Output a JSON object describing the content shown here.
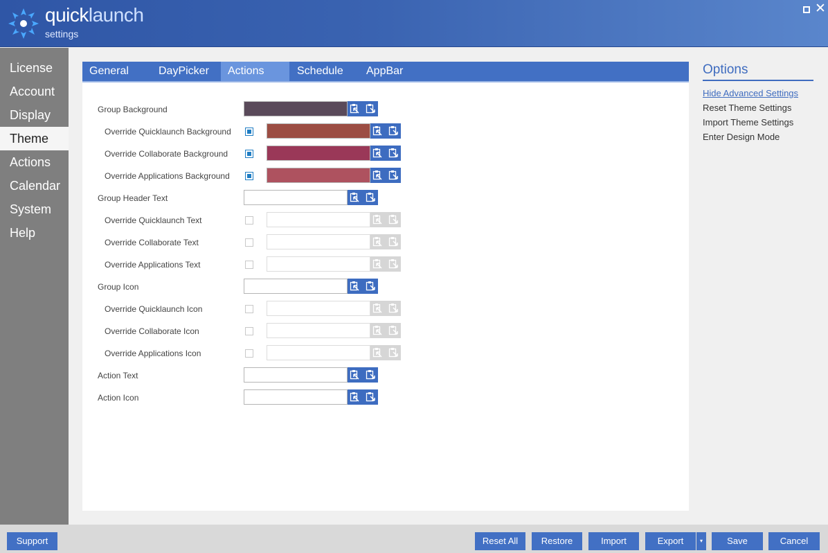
{
  "app": {
    "title_bold": "quick",
    "title_light": "launch",
    "subtitle": "settings"
  },
  "window": {
    "maximize_icon": "maximize-icon",
    "close_icon": "✕"
  },
  "sidebar": {
    "items": [
      {
        "label": "License"
      },
      {
        "label": "Account"
      },
      {
        "label": "Display"
      },
      {
        "label": "Theme",
        "active": true
      },
      {
        "label": "Actions"
      },
      {
        "label": "Calendar"
      },
      {
        "label": "System"
      },
      {
        "label": "Help"
      }
    ]
  },
  "tabs": [
    {
      "label": "General"
    },
    {
      "label": "DayPicker"
    },
    {
      "label": "Actions",
      "active": true
    },
    {
      "label": "Schedule"
    },
    {
      "label": "AppBar"
    }
  ],
  "rows": [
    {
      "label": "Group Background",
      "color": "#5a4a5a"
    },
    {
      "label": "Override Quicklaunch Background",
      "checked": true,
      "color": "#9c4d43"
    },
    {
      "label": "Override Collaborate Background",
      "checked": true,
      "color": "#9a3858"
    },
    {
      "label": "Override Applications Background",
      "checked": true,
      "color": "#ae525f"
    },
    {
      "label": "Group Header Text",
      "color": "#ffffff"
    },
    {
      "label": "Override Quicklaunch Text",
      "checked": false
    },
    {
      "label": "Override Collaborate Text",
      "checked": false
    },
    {
      "label": "Override Applications Text",
      "checked": false
    },
    {
      "label": "Group Icon",
      "color": "#ffffff"
    },
    {
      "label": "Override Quicklaunch Icon",
      "checked": false
    },
    {
      "label": "Override Collaborate Icon",
      "checked": false
    },
    {
      "label": "Override Applications Icon",
      "checked": false
    },
    {
      "label": "Action Text",
      "color": "#ffffff"
    },
    {
      "label": "Action Icon",
      "color": "#ffffff"
    }
  ],
  "row_icons": {
    "pick": "eyedropper-select-icon",
    "paste": "paste-clipboard-icon"
  },
  "options": {
    "title": "Options",
    "items": [
      {
        "label": "Hide Advanced Settings",
        "link": true
      },
      {
        "label": "Reset Theme Settings"
      },
      {
        "label": "Import Theme Settings"
      },
      {
        "label": "Enter Design Mode"
      }
    ]
  },
  "footer": {
    "support": "Support",
    "reset_all": "Reset All",
    "restore": "Restore",
    "import": "Import",
    "export": "Export",
    "export_dropdown": "▾",
    "save": "Save",
    "cancel": "Cancel"
  },
  "colors": {
    "header": "#3a63b1",
    "accent": "#4270c4",
    "sidebar": "#7f7f7f",
    "checkbox": "#1f7dc3"
  }
}
